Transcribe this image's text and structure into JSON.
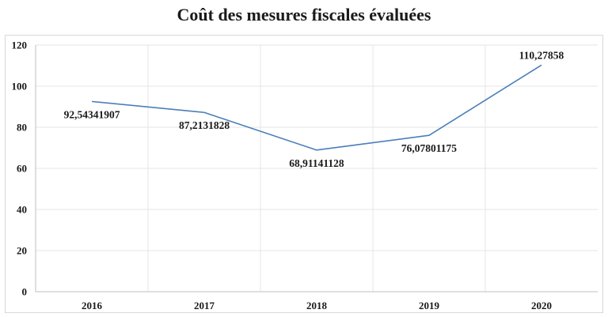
{
  "chart_data": {
    "type": "line",
    "title": "Coût des mesures fiscales évaluées",
    "xlabel": "",
    "ylabel": "",
    "categories": [
      "2016",
      "2017",
      "2018",
      "2019",
      "2020"
    ],
    "series": [
      {
        "values": [
          92.54341907,
          87.2131828,
          68.91141128,
          76.07801175,
          110.27858
        ],
        "labels": [
          "92,54341907",
          "87,2131828",
          "68,91141128",
          "76,07801175",
          "110,27858"
        ],
        "label_positions": [
          "below",
          "below",
          "below",
          "below",
          "above"
        ],
        "color": "#4a7ebb"
      }
    ],
    "ylim": [
      0,
      120
    ],
    "yticks": [
      "0",
      "20",
      "40",
      "60",
      "80",
      "100",
      "120"
    ],
    "grid": true,
    "gridline_color": "#e6e6e6",
    "legend": "none"
  }
}
